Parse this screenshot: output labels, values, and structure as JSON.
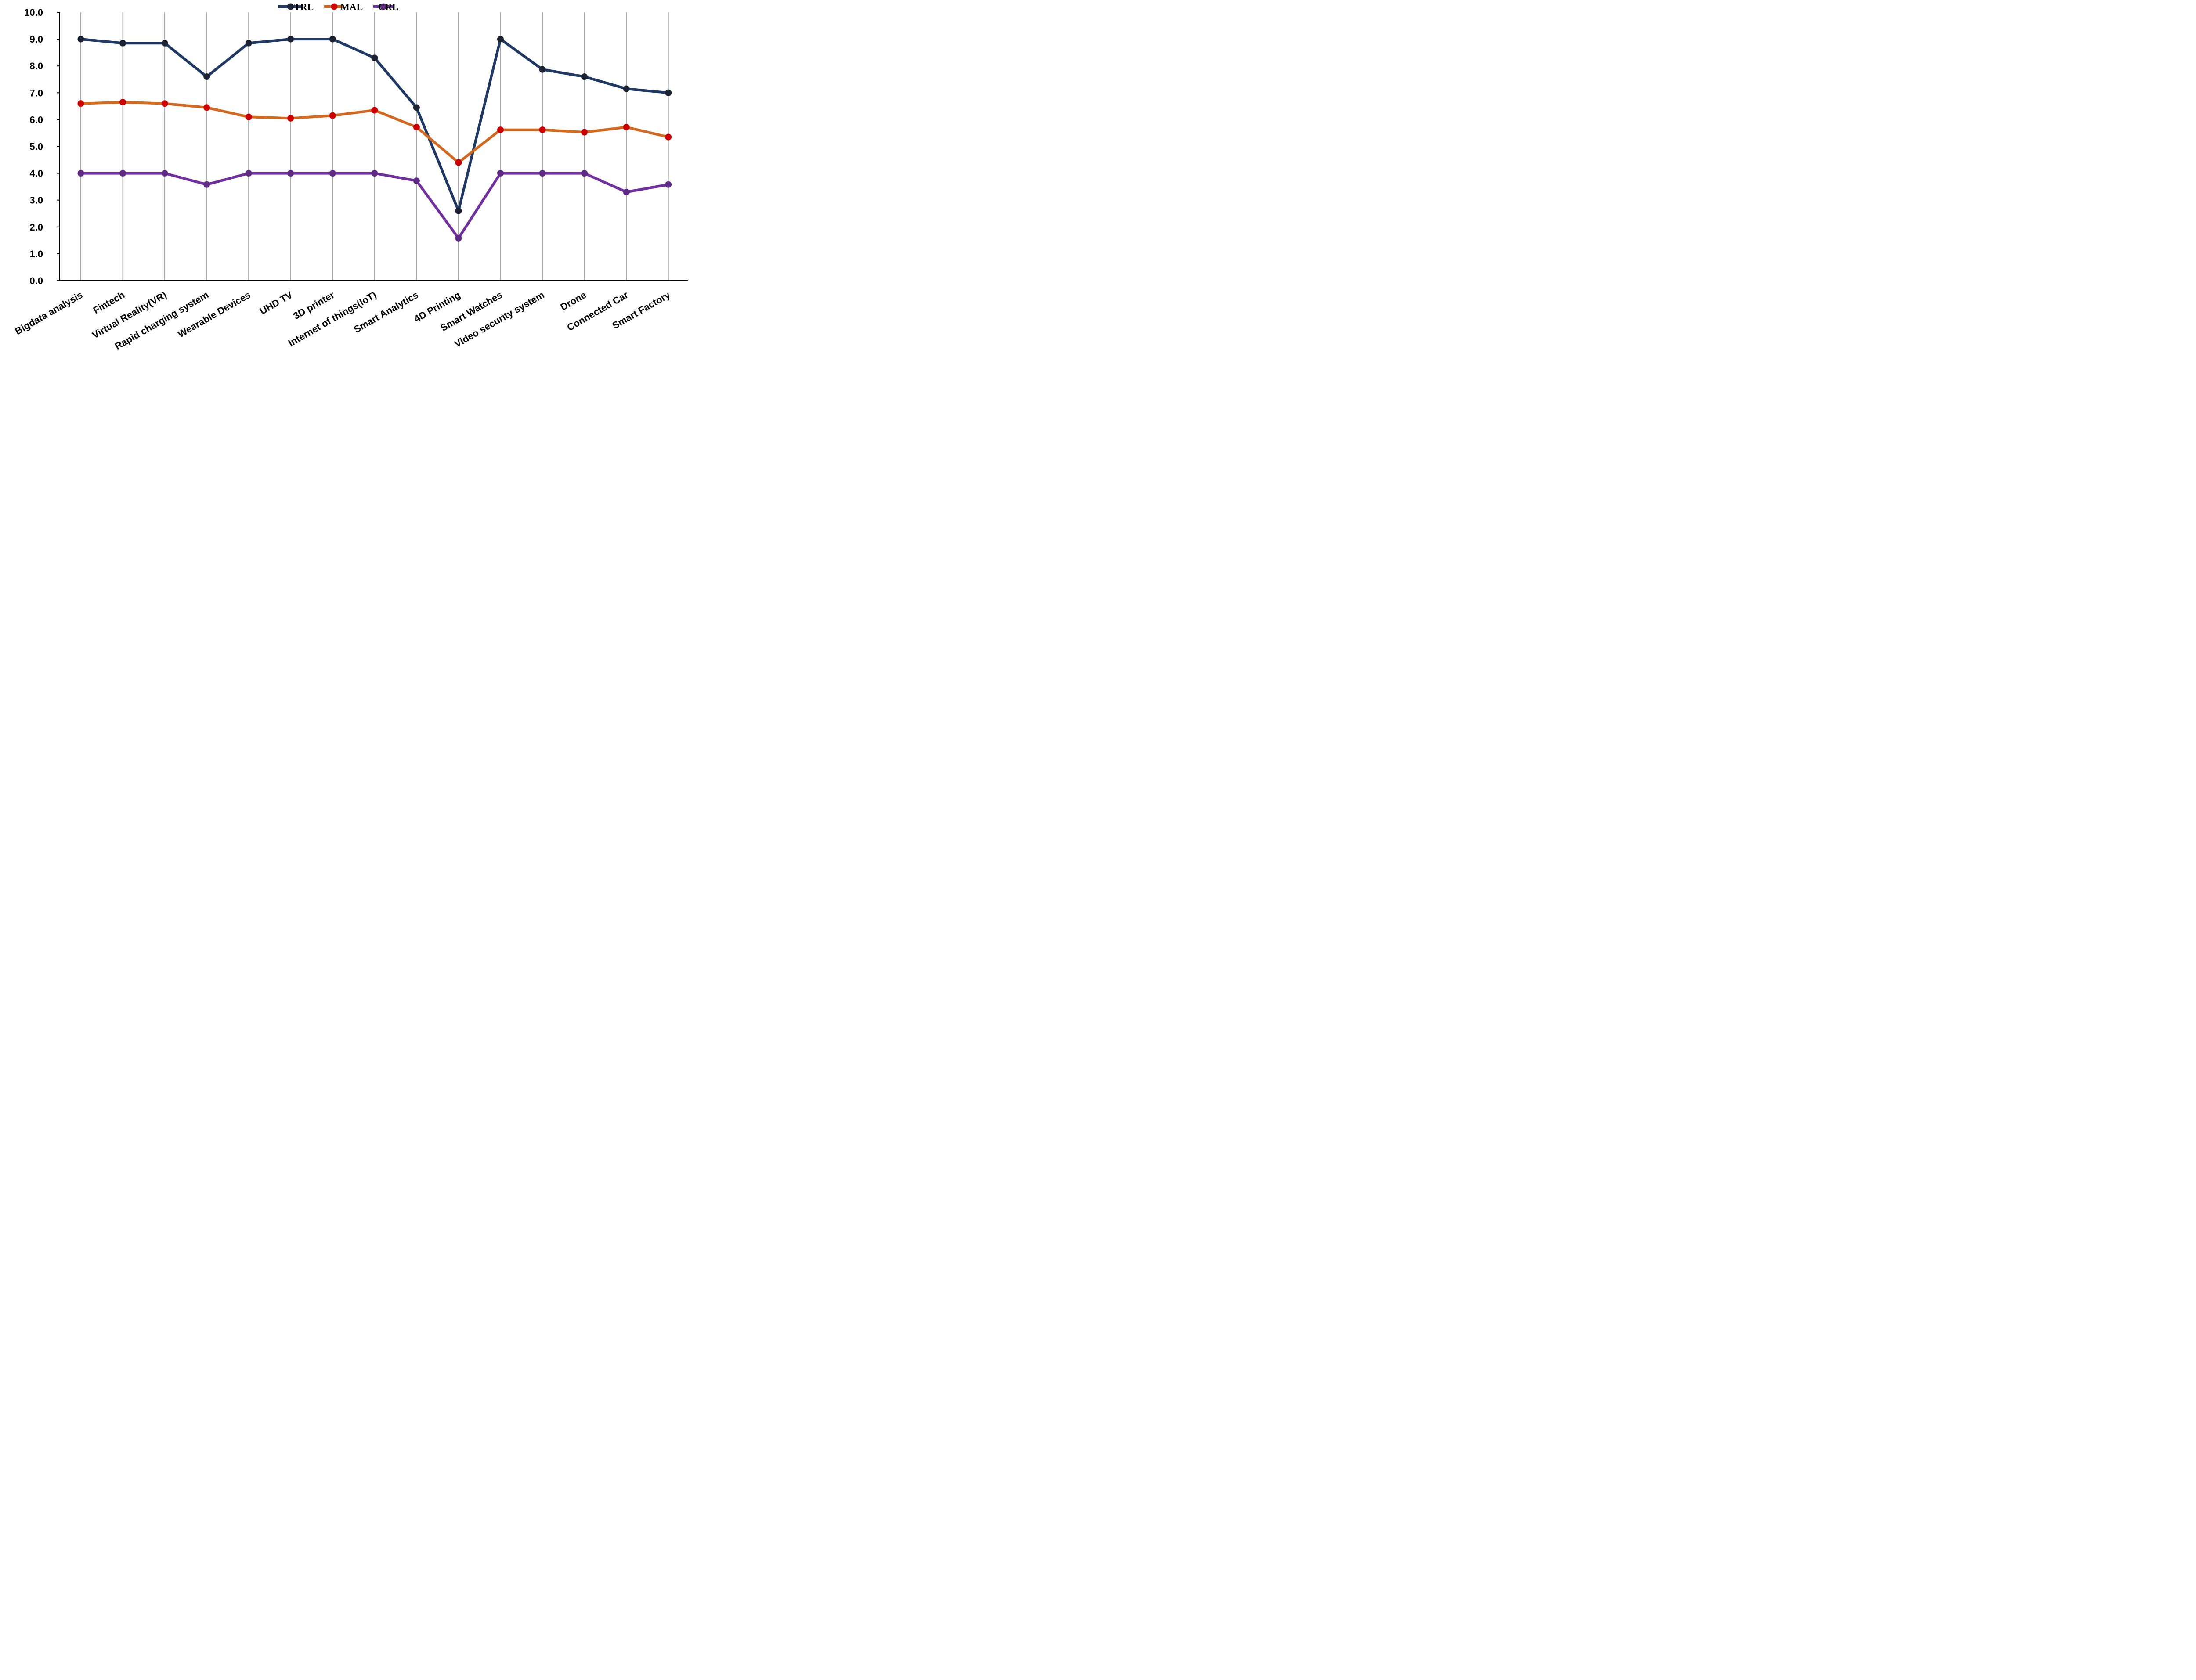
{
  "chart_data": {
    "type": "line",
    "title": "",
    "xlabel": "",
    "ylabel": "",
    "ylim": [
      0,
      10
    ],
    "y_ticks": [
      "0.0",
      "1.0",
      "2.0",
      "3.0",
      "4.0",
      "5.0",
      "6.0",
      "7.0",
      "8.0",
      "9.0",
      "10.0"
    ],
    "grid": "vertical",
    "legend_position": "top-center",
    "categories": [
      "Bigdata analysis",
      "Fintech",
      "Virtual Reality(VR)",
      "Rapid charging system",
      "Wearable Devices",
      "UHD TV",
      "3D printer",
      "Internet of things(IoT)",
      "Smart Analytics",
      "4D Printing",
      "Smart Watches",
      "Video security system",
      "Drone",
      "Connected Car",
      "Smart Factory"
    ],
    "series": [
      {
        "name": "TRL",
        "line_color": "#1F3864",
        "marker_color": "#1C2433",
        "values": [
          9.0,
          8.85,
          8.85,
          7.6,
          8.85,
          9.0,
          9.0,
          8.3,
          6.45,
          2.6,
          9.0,
          7.87,
          7.6,
          7.15,
          7.0
        ]
      },
      {
        "name": "MAL",
        "line_color": "#D2691E",
        "marker_color": "#CC0000",
        "values": [
          6.6,
          6.65,
          6.6,
          6.45,
          6.1,
          6.05,
          6.15,
          6.35,
          5.72,
          4.4,
          5.62,
          5.62,
          5.53,
          5.72,
          5.35
        ]
      },
      {
        "name": "CRL",
        "line_color": "#7030A0",
        "marker_color": "#5E2A85",
        "values": [
          4.0,
          4.0,
          4.0,
          3.58,
          4.0,
          4.0,
          4.0,
          4.0,
          3.72,
          1.58,
          4.0,
          4.0,
          4.0,
          3.3,
          3.58
        ]
      }
    ]
  }
}
